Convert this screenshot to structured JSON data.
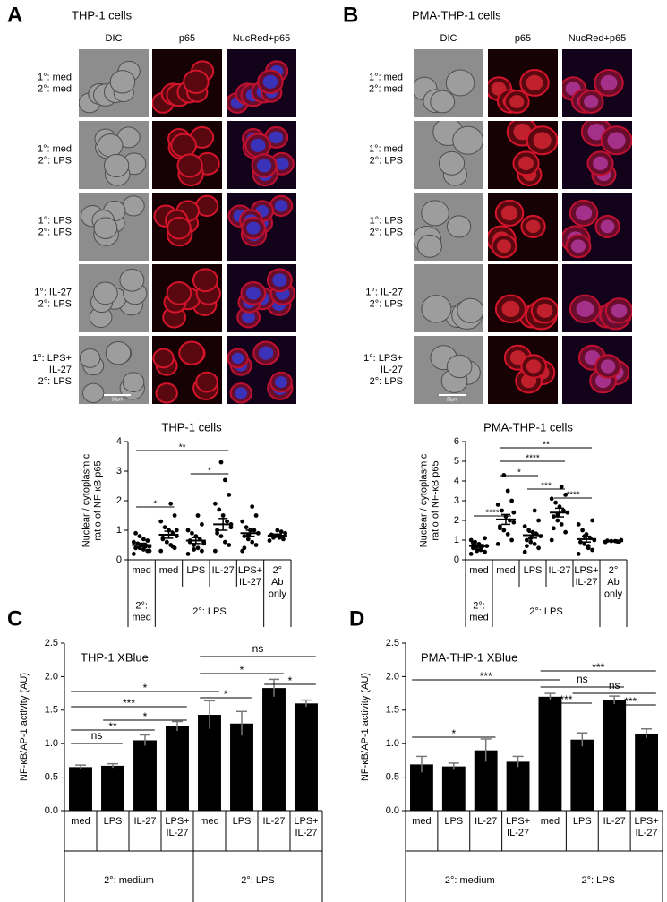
{
  "panels": [
    {
      "letter": "A",
      "title": "THP-1 cells",
      "columns": [
        "DIC",
        "p65",
        "NucRed+p65"
      ],
      "rows": [
        "1°: med\n2°: med",
        "1°: med\n2°: LPS",
        "1°: LPS\n2°: LPS",
        "1°: IL-27\n2°: LPS",
        "1°: LPS+\nIL-27\n2°: LPS"
      ],
      "scale_bar": "30μm"
    },
    {
      "letter": "B",
      "title": "PMA-THP-1 cells",
      "columns": [
        "DIC",
        "p65",
        "NucRed+p65"
      ],
      "rows": [
        "1°: med\n2°: med",
        "1°: med\n2°: LPS",
        "1°: LPS\n2°: LPS",
        "1°: IL-27\n2°: LPS",
        "1°: LPS+\nIL-27\n2°: LPS"
      ],
      "scale_bar": "30μm"
    }
  ],
  "chart_data": [
    {
      "type": "dot",
      "title": "THP-1 cells",
      "ylabel": "Nuclear / cytoplasmic\nratio of NF-κB p65",
      "categories": [
        "med",
        "med",
        "LPS",
        "IL-27",
        "LPS+\nIL-27",
        "2°\nAb\nonly"
      ],
      "groups": [
        "2°:\nmed",
        "2°: LPS"
      ],
      "points": [
        [
          0.2,
          0.3,
          0.35,
          0.4,
          0.4,
          0.45,
          0.5,
          0.5,
          0.55,
          0.6,
          0.65,
          0.7,
          0.8,
          0.9,
          0.3,
          0.45
        ],
        [
          0.3,
          0.4,
          0.5,
          0.6,
          0.7,
          0.8,
          0.9,
          1.0,
          1.1,
          1.3,
          1.5,
          1.9,
          0.6,
          0.75,
          1.0,
          0.45
        ],
        [
          0.2,
          0.3,
          0.4,
          0.5,
          0.6,
          0.6,
          0.7,
          0.8,
          0.9,
          1.0,
          1.2,
          1.5,
          0.35,
          0.65,
          0.55
        ],
        [
          0.3,
          0.5,
          0.6,
          0.8,
          1.0,
          1.1,
          1.3,
          1.5,
          1.7,
          1.9,
          2.2,
          2.7,
          3.3,
          0.9,
          1.2
        ],
        [
          0.3,
          0.5,
          0.6,
          0.7,
          0.8,
          0.9,
          1.0,
          1.0,
          1.1,
          1.3,
          1.5,
          1.8,
          0.85,
          0.4
        ],
        [
          0.65,
          0.7,
          0.75,
          0.8,
          0.85,
          0.9,
          0.95,
          1.0,
          0.75
        ]
      ],
      "means": [
        0.5,
        0.85,
        0.65,
        1.2,
        0.9,
        0.82
      ],
      "sem": [
        0.06,
        0.12,
        0.1,
        0.2,
        0.1,
        0.05
      ],
      "ylim": [
        0,
        4
      ],
      "yticks": [
        0,
        1,
        2,
        3,
        4
      ],
      "color": "#000000",
      "significance": [
        {
          "from": 0,
          "to": 1,
          "label": "*"
        },
        {
          "from": 0,
          "to": 3,
          "label": "**"
        },
        {
          "from": 2,
          "to": 3,
          "label": "*"
        }
      ]
    },
    {
      "type": "dot",
      "title": "PMA-THP-1 cells",
      "ylabel": "Nuclear / cytoplasmic\nratio of NF-κB p65",
      "categories": [
        "med",
        "med",
        "LPS",
        "IL-27",
        "LPS+\nIL-27",
        "2°\nAb\nonly"
      ],
      "groups": [
        "2°:\nmed",
        "2°: LPS"
      ],
      "points": [
        [
          0.3,
          0.4,
          0.5,
          0.5,
          0.6,
          0.7,
          0.7,
          0.8,
          0.9,
          1.0,
          1.1,
          0.6,
          0.45,
          0.85
        ],
        [
          0.8,
          1.0,
          1.3,
          1.5,
          1.7,
          1.9,
          2.0,
          2.2,
          2.5,
          2.8,
          3.0,
          3.5,
          4.3,
          1.6,
          2.4
        ],
        [
          0.4,
          0.6,
          0.8,
          0.9,
          1.0,
          1.2,
          1.3,
          1.4,
          1.5,
          1.7,
          2.0,
          2.5,
          1.1,
          0.7
        ],
        [
          1.0,
          1.4,
          1.8,
          2.0,
          2.2,
          2.4,
          2.5,
          2.7,
          2.9,
          3.1,
          3.3,
          3.7,
          2.3,
          1.6
        ],
        [
          0.3,
          0.5,
          0.7,
          0.8,
          0.9,
          1.0,
          1.1,
          1.3,
          1.5,
          1.8,
          2.0,
          0.6,
          1.2
        ],
        [
          0.9,
          0.92,
          0.95,
          0.95,
          0.97,
          1.0,
          0.93
        ]
      ],
      "means": [
        0.7,
        2.05,
        1.25,
        2.4,
        1.05,
        0.95
      ],
      "sem": [
        0.07,
        0.25,
        0.15,
        0.22,
        0.15,
        0.02
      ],
      "ylim": [
        0,
        6
      ],
      "yticks": [
        0,
        1,
        2,
        3,
        4,
        5,
        6
      ],
      "color": "#000000",
      "significance": [
        {
          "from": 0,
          "to": 1,
          "label": "****"
        },
        {
          "from": 1,
          "to": 2,
          "label": "*"
        },
        {
          "from": 2,
          "to": 3,
          "label": "***"
        },
        {
          "from": 3,
          "to": 4,
          "label": "****"
        },
        {
          "from": 1,
          "to": 3,
          "label": "****"
        },
        {
          "from": 1,
          "to": 4,
          "label": "**"
        }
      ]
    },
    {
      "type": "bar",
      "panel_label": "C",
      "title": "THP-1 XBlue",
      "ylabel": "NF-κB/AP-1 activity (AU)",
      "categories": [
        "med",
        "LPS",
        "IL-27",
        "LPS+\nIL-27",
        "med",
        "LPS",
        "IL-27",
        "LPS+\nIL-27"
      ],
      "groups": [
        "2°: medium",
        "2°: LPS"
      ],
      "values": [
        0.65,
        0.67,
        1.05,
        1.26,
        1.43,
        1.3,
        1.83,
        1.6
      ],
      "errors": [
        0.03,
        0.03,
        0.08,
        0.07,
        0.21,
        0.18,
        0.13,
        0.05
      ],
      "ylim": [
        0,
        2.5
      ],
      "yticks": [
        {
          "value": 0,
          "label": "0.0"
        },
        0.5,
        {
          "value": 1,
          "label": "1.0"
        },
        1.5,
        {
          "value": 2,
          "label": "2.0"
        },
        2.5
      ],
      "color": "#000000",
      "significance": [
        {
          "from": 0,
          "to": 1,
          "label": "ns"
        },
        {
          "from": 0,
          "to": 2,
          "label": "**"
        },
        {
          "from": 1,
          "to": 3,
          "label": "*"
        },
        {
          "from": 0,
          "to": 3,
          "label": "***"
        },
        {
          "from": 0,
          "to": 4,
          "label": "*"
        },
        {
          "from": 4,
          "to": 5,
          "label": "*"
        },
        {
          "from": 4,
          "to": 6,
          "label": "*"
        },
        {
          "from": 4,
          "to": 7,
          "label": "ns"
        },
        {
          "from": 6,
          "to": 7,
          "label": "*"
        }
      ]
    },
    {
      "type": "bar",
      "panel_label": "D",
      "title": "PMA-THP-1 XBlue",
      "ylabel": "NF-κB/AP-1 activity (AU)",
      "categories": [
        "med",
        "LPS",
        "IL-27",
        "LPS+\nIL-27",
        "med",
        "LPS",
        "IL-27",
        "LPS+\nIL-27"
      ],
      "groups": [
        "2°: medium",
        "2°: LPS"
      ],
      "values": [
        0.69,
        0.66,
        0.9,
        0.73,
        1.7,
        1.06,
        1.65,
        1.15
      ],
      "errors": [
        0.12,
        0.05,
        0.17,
        0.08,
        0.05,
        0.1,
        0.06,
        0.07
      ],
      "ylim": [
        0,
        2.5
      ],
      "yticks": [
        {
          "value": 0,
          "label": "0.0"
        },
        0.5,
        {
          "value": 1,
          "label": "1.0"
        },
        1.5,
        {
          "value": 2,
          "label": "2.0"
        },
        2.5
      ],
      "color": "#000000",
      "significance": [
        {
          "from": 0,
          "to": 2,
          "label": "*"
        },
        {
          "from": 0,
          "to": 4,
          "label": "***"
        },
        {
          "from": 4,
          "to": 5,
          "label": "***"
        },
        {
          "from": 4,
          "to": 6,
          "label": "ns"
        },
        {
          "from": 4,
          "to": 7,
          "label": "***"
        },
        {
          "from": 5,
          "to": 7,
          "label": "ns"
        },
        {
          "from": 6,
          "to": 7,
          "label": "***"
        }
      ]
    }
  ]
}
